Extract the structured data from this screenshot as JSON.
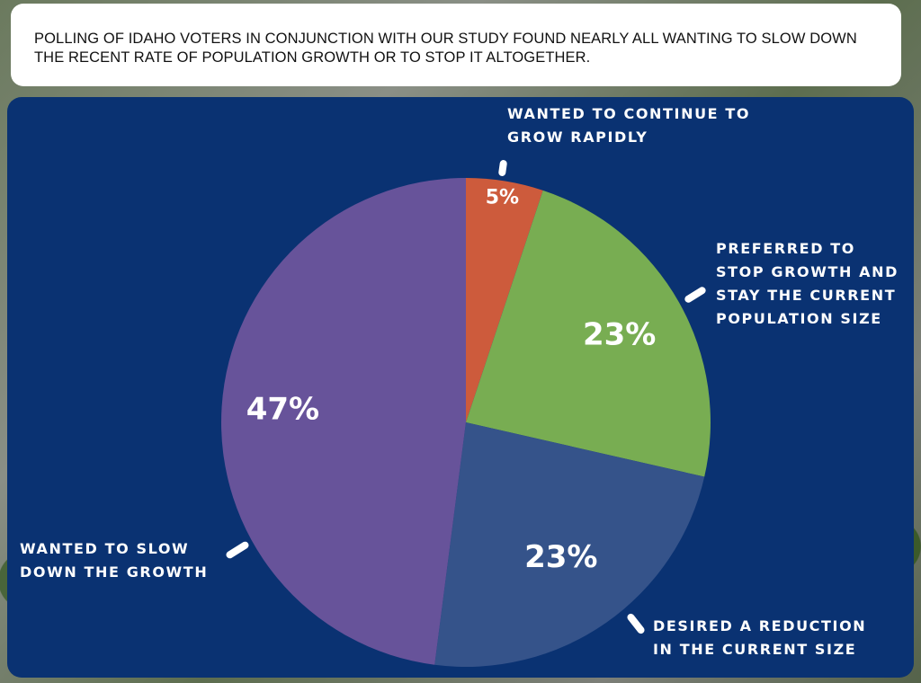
{
  "header": {
    "text": "POLLING OF IDAHO VOTERS IN CONJUNCTION WITH OUR STUDY FOUND NEARLY ALL WANTING TO SLOW DOWN THE RECENT RATE OF POPULATION GROWTH OR TO STOP IT ALTOGETHER."
  },
  "colors": {
    "panel": "#0a3272",
    "slice_continue": "#cd5b3c",
    "slice_stop": "#78ad52",
    "slice_reduce": "#35538a",
    "slice_slow": "#67539a"
  },
  "chart_data": {
    "type": "pie",
    "slices": [
      {
        "category": "WANTED TO CONTINUE TO GROW RAPIDLY",
        "value": 5,
        "label": "5%",
        "color": "#cd5b3c"
      },
      {
        "category": "PREFERRED TO STOP GROWTH AND STAY THE CURRENT POPULATION SIZE",
        "value": 23,
        "label": "23%",
        "color": "#78ad52"
      },
      {
        "category": "DESIRED A REDUCTION IN THE CURRENT SIZE",
        "value": 23,
        "label": "23%",
        "color": "#35538a"
      },
      {
        "category": "WANTED TO SLOW DOWN THE GROWTH",
        "value": 47,
        "label": "47%",
        "color": "#67539a"
      }
    ],
    "labels": {
      "continue": "WANTED TO CONTINUE TO\nGROW RAPIDLY",
      "stop": "PREFERRED TO\nSTOP GROWTH AND\nSTAY THE CURRENT\nPOPULATION SIZE",
      "reduce": "DESIRED A REDUCTION\nIN THE CURRENT SIZE",
      "slow": "WANTED TO SLOW\nDOWN THE GROWTH"
    }
  }
}
